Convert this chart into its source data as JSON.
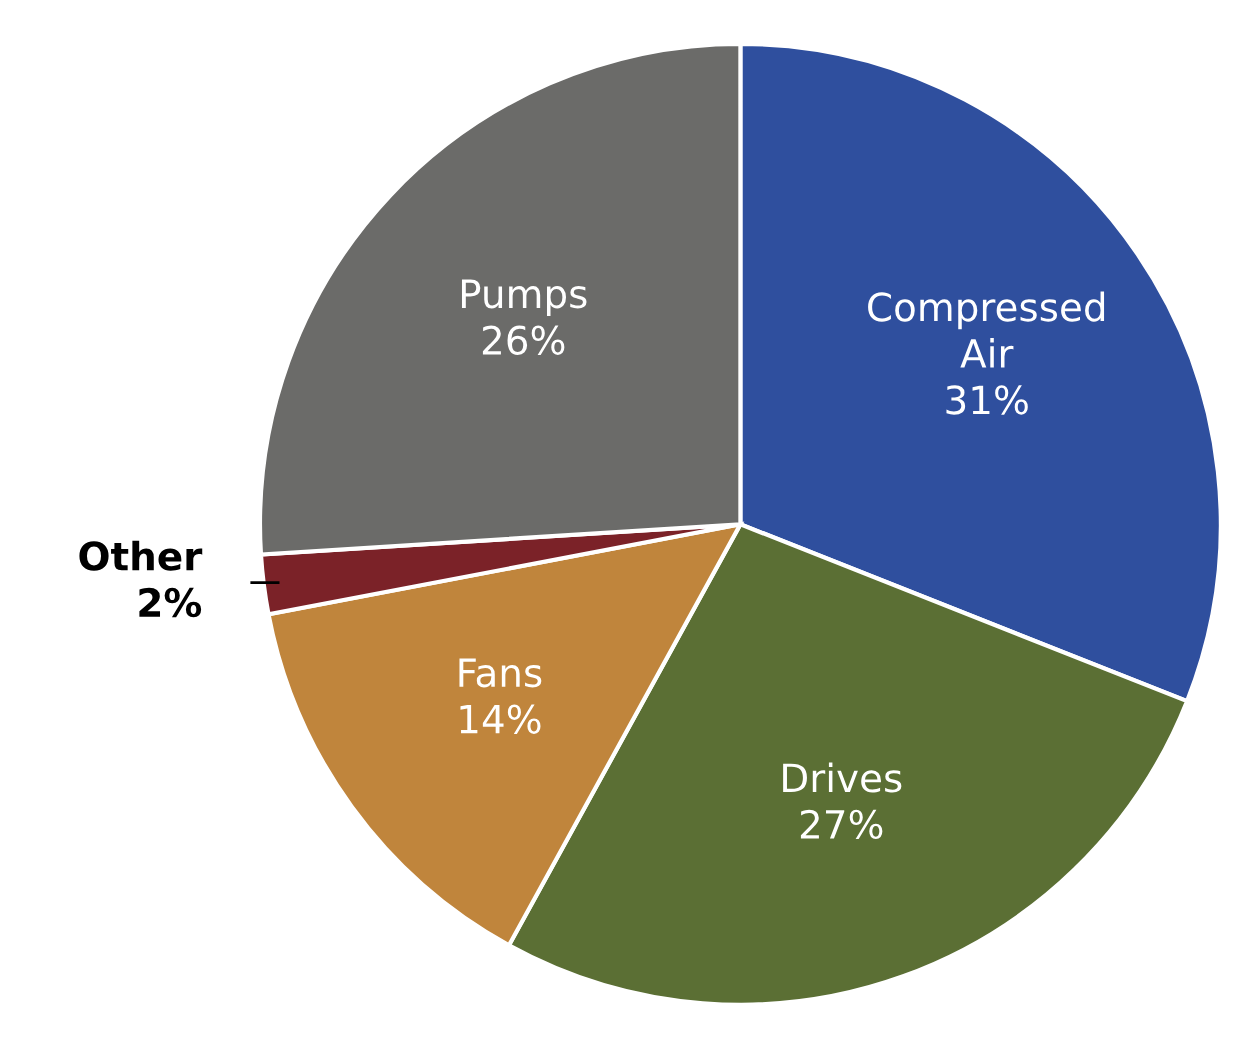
{
  "chart_data": {
    "type": "pie",
    "categories": [
      "Compressed\nAir",
      "Drives",
      "Fans",
      "Other",
      "Pumps"
    ],
    "values": [
      31,
      27,
      14,
      2,
      26
    ],
    "value_labels": [
      "31%",
      "27%",
      "14%",
      "2%",
      "26%"
    ],
    "colors": [
      "#2f4f9e",
      "#5b6f34",
      "#c0853c",
      "#7b2228",
      "#6b6b69"
    ]
  }
}
